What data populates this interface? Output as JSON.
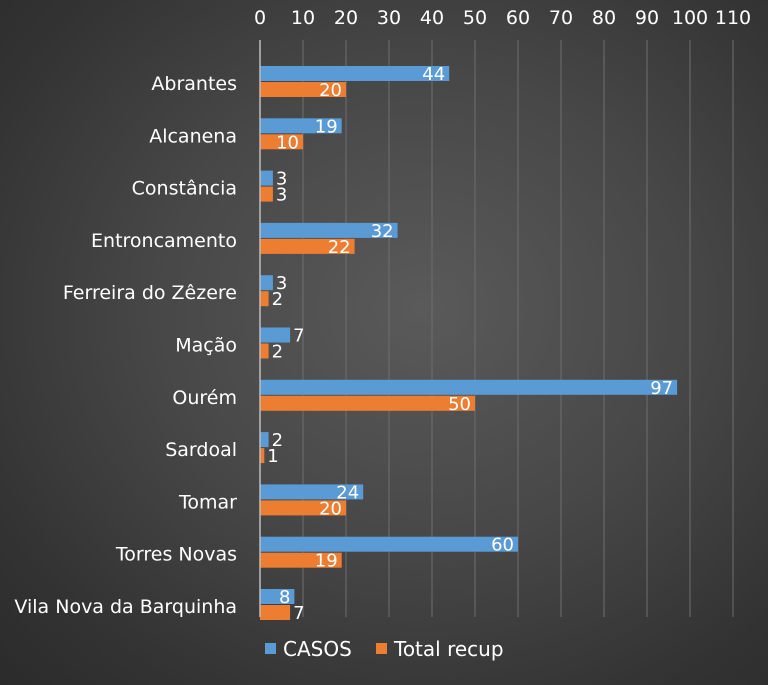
{
  "chart_data": {
    "type": "bar",
    "orientation": "horizontal",
    "categories": [
      "Abrantes",
      "Alcanena",
      "Constância",
      "Entroncamento",
      "Ferreira do Zêzere",
      "Mação",
      "Ourém",
      "Sardoal",
      "Tomar",
      "Torres Novas",
      "Vila Nova da Barquinha"
    ],
    "series": [
      {
        "name": "CASOS",
        "color": "#5b9bd5",
        "values": [
          44,
          19,
          3,
          32,
          3,
          7,
          97,
          2,
          24,
          60,
          8
        ]
      },
      {
        "name": "Total recup",
        "color": "#ed7d31",
        "values": [
          20,
          10,
          3,
          22,
          2,
          2,
          50,
          1,
          20,
          19,
          7
        ]
      }
    ],
    "x_ticks": [
      0,
      10,
      20,
      30,
      40,
      50,
      60,
      70,
      80,
      90,
      100,
      110
    ],
    "xlim": [
      0,
      110
    ],
    "axis_position": "top",
    "grid": true,
    "legend_position": "bottom",
    "title": "",
    "xlabel": "",
    "ylabel": ""
  }
}
